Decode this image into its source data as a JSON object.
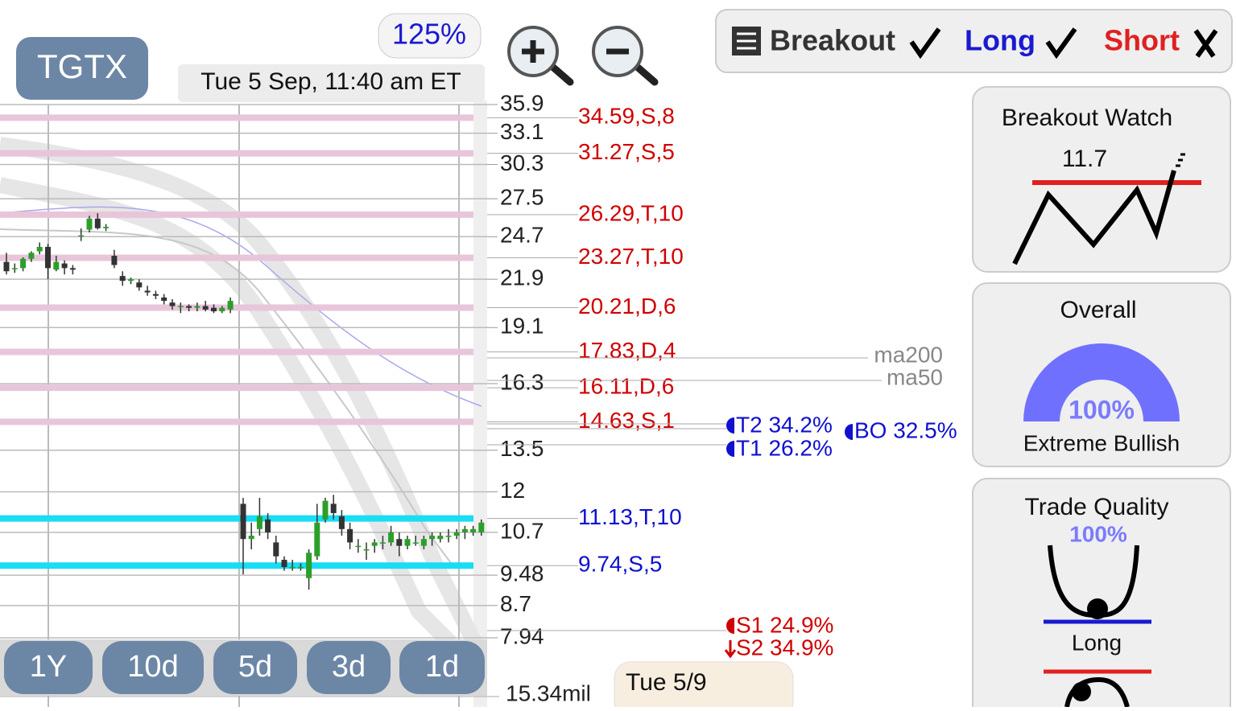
{
  "ticker": "TGTX",
  "zoom": "125%",
  "timestamp": "Tue 5 Sep, 11:40 am ET",
  "price_axis": {
    "scale": "log",
    "ylim": [
      7.94,
      35.9
    ],
    "ticks": [
      35.9,
      33.1,
      30.3,
      27.5,
      24.7,
      21.9,
      19.1,
      16.3,
      13.5,
      12,
      10.7,
      9.48,
      8.7,
      7.94
    ]
  },
  "levels": [
    {
      "label": "34.59,S,8",
      "value": 34.59,
      "color": "#d00000",
      "band_color": "#e8c6da"
    },
    {
      "label": "31.27,S,5",
      "value": 31.27,
      "color": "#d00000",
      "band_color": "#e8c6da"
    },
    {
      "label": "26.29,T,10",
      "value": 26.29,
      "color": "#d00000",
      "band_color": "#e8c6da"
    },
    {
      "label": "23.27,T,10",
      "value": 23.27,
      "color": "#d00000",
      "band_color": "#e8c6da"
    },
    {
      "label": "20.21,D,6",
      "value": 20.21,
      "color": "#d00000",
      "band_color": "#e8c6da"
    },
    {
      "label": "17.83,D,4",
      "value": 17.83,
      "color": "#d00000",
      "band_color": "#e8c6da"
    },
    {
      "label": "16.11,D,6",
      "value": 16.11,
      "color": "#d00000",
      "band_color": "#e8c6da"
    },
    {
      "label": "14.63,S,1",
      "value": 14.63,
      "color": "#d00000",
      "band_color": "#e8c6da"
    },
    {
      "label": "11.13,T,10",
      "value": 11.13,
      "color": "#1010d0",
      "band_color": "#19dcf5"
    },
    {
      "label": "9.74,S,5",
      "value": 9.74,
      "color": "#1010d0",
      "band_color": "#19dcf5"
    }
  ],
  "candles": [
    [
      23.0,
      23.6,
      22.2,
      22.4
    ],
    [
      22.6,
      22.9,
      22.3,
      22.6
    ],
    [
      22.6,
      23.3,
      22.4,
      23.2
    ],
    [
      23.2,
      23.7,
      23.0,
      23.6
    ],
    [
      23.7,
      24.3,
      23.5,
      24.0
    ],
    [
      24.0,
      24.2,
      21.9,
      22.6
    ],
    [
      22.5,
      23.4,
      22.4,
      23.0
    ],
    [
      22.9,
      23.1,
      22.2,
      22.6
    ],
    [
      22.6,
      22.8,
      22.2,
      22.5
    ],
    [
      24.8,
      25.3,
      24.4,
      24.8
    ],
    [
      25.2,
      26.2,
      25.0,
      26.0
    ],
    [
      26.0,
      26.4,
      25.2,
      25.3
    ],
    [
      25.3,
      25.6,
      25.1,
      25.4
    ],
    [
      23.4,
      23.8,
      22.6,
      22.8
    ],
    [
      22.1,
      22.4,
      21.5,
      21.8
    ],
    [
      21.8,
      22.0,
      21.6,
      21.9
    ],
    [
      21.7,
      21.9,
      21.2,
      21.4
    ],
    [
      21.2,
      21.5,
      20.9,
      21.1
    ],
    [
      21.0,
      21.2,
      20.7,
      20.9
    ],
    [
      20.8,
      21.0,
      20.4,
      20.6
    ],
    [
      20.5,
      20.7,
      20.1,
      20.3
    ],
    [
      20.3,
      20.5,
      19.9,
      20.3
    ],
    [
      20.3,
      20.4,
      20.0,
      20.2
    ],
    [
      20.2,
      20.5,
      20.0,
      20.3
    ],
    [
      20.3,
      20.6,
      20.0,
      20.1
    ],
    [
      20.2,
      20.4,
      19.9,
      20.0
    ],
    [
      20.0,
      20.3,
      19.9,
      20.2
    ],
    [
      20.1,
      20.8,
      19.9,
      20.6
    ],
    [
      11.6,
      11.8,
      9.5,
      10.5
    ],
    [
      10.5,
      11.0,
      10.2,
      10.6
    ],
    [
      10.8,
      11.8,
      10.6,
      11.2
    ],
    [
      11.1,
      11.3,
      10.5,
      10.7
    ],
    [
      10.4,
      10.6,
      9.8,
      10.0
    ],
    [
      9.9,
      10.0,
      9.6,
      9.7
    ],
    [
      9.7,
      9.9,
      9.6,
      9.7
    ],
    [
      9.7,
      9.8,
      9.6,
      9.7
    ],
    [
      9.4,
      10.2,
      9.1,
      10.1
    ],
    [
      10.0,
      11.6,
      9.9,
      11.0
    ],
    [
      11.1,
      11.8,
      11.0,
      11.7
    ],
    [
      11.6,
      11.9,
      11.1,
      11.3
    ],
    [
      11.2,
      11.4,
      10.6,
      10.8
    ],
    [
      10.8,
      11.0,
      10.2,
      10.4
    ],
    [
      10.3,
      10.5,
      10.1,
      10.3
    ],
    [
      10.2,
      10.4,
      9.9,
      10.2
    ],
    [
      10.3,
      10.5,
      10.1,
      10.4
    ],
    [
      10.4,
      10.6,
      10.2,
      10.4
    ],
    [
      10.4,
      10.9,
      10.3,
      10.7
    ],
    [
      10.5,
      10.7,
      10.0,
      10.3
    ],
    [
      10.3,
      10.6,
      10.2,
      10.5
    ],
    [
      10.4,
      10.6,
      10.3,
      10.4
    ],
    [
      10.3,
      10.6,
      10.2,
      10.5
    ],
    [
      10.5,
      10.7,
      10.3,
      10.6
    ],
    [
      10.5,
      10.7,
      10.4,
      10.6
    ],
    [
      10.6,
      10.8,
      10.4,
      10.6
    ],
    [
      10.6,
      10.8,
      10.5,
      10.7
    ],
    [
      10.7,
      10.9,
      10.5,
      10.8
    ],
    [
      10.7,
      10.9,
      10.6,
      10.8
    ],
    [
      10.7,
      11.1,
      10.6,
      11.0
    ]
  ],
  "moving_averages": [
    "ma200",
    "ma50"
  ],
  "targets": {
    "t2": "T2 34.2%",
    "t1": "T1 26.2%",
    "bo": "BO 32.5%",
    "s1": "S1 24.9%",
    "s2": "S2 34.9%"
  },
  "periods": [
    "1Y",
    "10d",
    "5d",
    "3d",
    "1d"
  ],
  "volume_label": "15.34mil",
  "date_tooltip": "Tue 5/9",
  "signals": {
    "breakout": "Breakout",
    "long": "Long",
    "short": "Short"
  },
  "panels": {
    "breakout_watch": {
      "title": "Breakout Watch",
      "value": "11.7"
    },
    "overall": {
      "title": "Overall",
      "percent": "100%",
      "rating": "Extreme Bullish"
    },
    "trade_quality": {
      "title": "Trade Quality",
      "percent": "100%",
      "direction": "Long"
    }
  }
}
